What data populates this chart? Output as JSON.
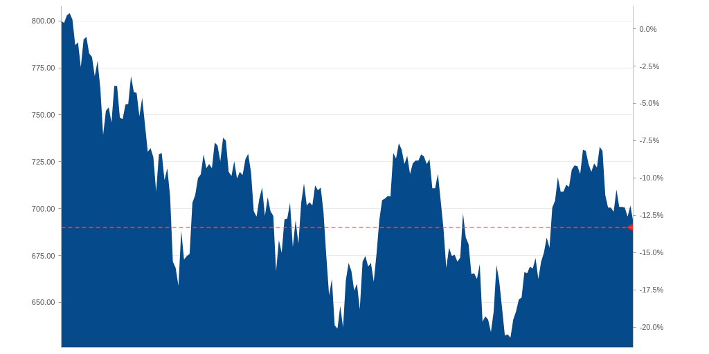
{
  "chart_data": {
    "type": "area",
    "categories": [
      null,
      null,
      null,
      null,
      null,
      null,
      null,
      null,
      null,
      null,
      null,
      null,
      null,
      null,
      null,
      null,
      null,
      null,
      null,
      null,
      null,
      null,
      null,
      null,
      null,
      null,
      null,
      null,
      null,
      null,
      null,
      null,
      null,
      null,
      null,
      null,
      null,
      null,
      null,
      null,
      null,
      null,
      null,
      null,
      null,
      null,
      null,
      null,
      null,
      null,
      null,
      null,
      null,
      null,
      null,
      null,
      null,
      null,
      null,
      null,
      null,
      null,
      null,
      null,
      null,
      null,
      null,
      null,
      null,
      null,
      null,
      null,
      null,
      null,
      null,
      null,
      null,
      null,
      null,
      null,
      null,
      null,
      null,
      null,
      null,
      null,
      null,
      null,
      null,
      null,
      null,
      null,
      null,
      null,
      null,
      null,
      null,
      null,
      null,
      null,
      null,
      null,
      null,
      null,
      null,
      null,
      null,
      null,
      null,
      null,
      null,
      null,
      null,
      null,
      null,
      null,
      null,
      null,
      null,
      null,
      null,
      null,
      null,
      null,
      null,
      null,
      null,
      null,
      null,
      null,
      null,
      null,
      null,
      null,
      null,
      null,
      null,
      null,
      null,
      null,
      null,
      null,
      null,
      null,
      null,
      null,
      null,
      null,
      null,
      null,
      null,
      null,
      null,
      null,
      null,
      null,
      null,
      null,
      null,
      null,
      null,
      null,
      null,
      null,
      null,
      null,
      null,
      null,
      null,
      null,
      null,
      null,
      null,
      null,
      null,
      null,
      null,
      null,
      null,
      null,
      null,
      null,
      null,
      null,
      null,
      null,
      null,
      null,
      null,
      null,
      null,
      null,
      null,
      null,
      null,
      null,
      null,
      null,
      null,
      null,
      null,
      null,
      null,
      null,
      null,
      null
    ],
    "series": [
      {
        "color": "#054a8a",
        "values": [
          800.0,
          798.9,
          802.9,
          804.1,
          800.7,
          787.1,
          788.6,
          775.3,
          790.0,
          791.5,
          782.7,
          780.8,
          770.5,
          778.6,
          764.2,
          739.2,
          752.1,
          753.9,
          745.8,
          765.4,
          765.4,
          748.4,
          747.7,
          755.4,
          755.8,
          770.5,
          762.1,
          761.7,
          749.1,
          759.1,
          744.7,
          730.3,
          732.2,
          727.4,
          709.0,
          728.9,
          729.6,
          715.2,
          721.5,
          706.7,
          671.7,
          668.4,
          658.8,
          688.3,
          672.8,
          674.7,
          675.8,
          703.1,
          707.1,
          716.3,
          718.2,
          728.9,
          721.5,
          723.7,
          721.5,
          735.1,
          733.7,
          725.2,
          737.7,
          736.2,
          719.6,
          717.4,
          725.2,
          716.0,
          719.6,
          717.8,
          726.3,
          729.2,
          719.6,
          698.6,
          695.7,
          705.3,
          711.2,
          696.1,
          706.0,
          698.6,
          696.1,
          666.6,
          683.2,
          676.5,
          694.2,
          694.6,
          703.1,
          679.5,
          693.8,
          681.3,
          703.1,
          713.4,
          701.6,
          703.4,
          701.6,
          712.3,
          709.7,
          711.2,
          697.9,
          674.7,
          653.7,
          662.5,
          637.8,
          636.0,
          648.1,
          636.7,
          661.8,
          671.0,
          666.6,
          656.3,
          659.9,
          646.3,
          671.7,
          674.7,
          669.1,
          671.0,
          661.0,
          675.8,
          693.8,
          704.5,
          705.3,
          706.7,
          706.4,
          729.6,
          726.7,
          734.8,
          731.5,
          723.7,
          728.1,
          718.5,
          724.1,
          725.6,
          725.6,
          728.9,
          727.8,
          723.7,
          726.3,
          710.8,
          710.8,
          718.5,
          704.2,
          689.4,
          668.4,
          679.1,
          674.7,
          675.4,
          671.7,
          673.9,
          697.5,
          684.6,
          681.0,
          665.1,
          665.5,
          662.5,
          670.3,
          639.7,
          642.6,
          640.8,
          634.2,
          645.2,
          669.9,
          661.1,
          647.0,
          632.3,
          633.0,
          631.2,
          640.8,
          645.2,
          651.5,
          652.6,
          666.2,
          665.5,
          669.1,
          668.0,
          673.6,
          662.5,
          671.7,
          676.5,
          684.6,
          679.1,
          700.5,
          704.2,
          716.7,
          709.0,
          709.0,
          712.7,
          711.6,
          720.8,
          723.0,
          722.6,
          718.5,
          731.4,
          730.7,
          723.7,
          719.6,
          724.1,
          721.9,
          732.9,
          730.7,
          707.1,
          700.5,
          700.5,
          698.3,
          710.1,
          700.9,
          700.9,
          700.5,
          695.7,
          701.6,
          693.1
        ]
      },
      {
        "type": "scatter",
        "color": "#ee1c25",
        "marker": "triangle",
        "values": [
          null,
          null,
          null,
          null,
          null,
          null,
          null,
          null,
          null,
          null,
          null,
          null,
          null,
          null,
          null,
          null,
          null,
          null,
          null,
          null,
          null,
          null,
          null,
          null,
          null,
          null,
          null,
          null,
          null,
          null,
          null,
          null,
          null,
          null,
          null,
          null,
          null,
          null,
          null,
          null,
          null,
          null,
          null,
          null,
          null,
          null,
          null,
          null,
          null,
          null,
          null,
          null,
          null,
          null,
          null,
          null,
          null,
          null,
          null,
          null,
          null,
          null,
          null,
          null,
          null,
          null,
          null,
          null,
          null,
          null,
          null,
          null,
          null,
          null,
          null,
          null,
          null,
          null,
          null,
          null,
          null,
          null,
          null,
          null,
          null,
          null,
          null,
          null,
          null,
          null,
          null,
          null,
          null,
          null,
          null,
          null,
          null,
          null,
          null,
          null,
          null,
          null,
          null,
          null,
          null,
          null,
          null,
          null,
          null,
          null,
          null,
          null,
          null,
          null,
          null,
          null,
          null,
          null,
          null,
          null,
          null,
          null,
          null,
          null,
          null,
          null,
          null,
          null,
          null,
          null,
          null,
          null,
          null,
          null,
          null,
          null,
          null,
          null,
          null,
          null,
          null,
          null,
          null,
          null,
          null,
          null,
          null,
          null,
          null,
          null,
          null,
          null,
          null,
          null,
          null,
          null,
          null,
          null,
          null,
          null,
          null,
          null,
          null,
          null,
          null,
          null,
          null,
          null,
          null,
          null,
          null,
          null,
          null,
          null,
          null,
          null,
          null,
          null,
          null,
          null,
          null,
          null,
          null,
          null,
          null,
          null,
          null,
          null,
          null,
          null,
          null,
          null,
          null,
          null,
          null,
          null,
          null,
          null,
          null,
          null,
          null,
          null,
          null,
          null,
          null,
          690
        ]
      }
    ],
    "ylim": [
      626,
      808
    ],
    "yticks": [
      {
        "value": 650,
        "label": "650.00"
      },
      {
        "value": 675,
        "label": "675.00"
      },
      {
        "value": 700,
        "label": "700.00"
      },
      {
        "value": 725,
        "label": "725.00"
      },
      {
        "value": 750,
        "label": "750.00"
      },
      {
        "value": 775,
        "label": "775.00"
      },
      {
        "value": 800,
        "label": "800.00"
      }
    ],
    "y2lim": [
      -21.35,
      1.53
    ],
    "y2ticks": [
      {
        "value": 0,
        "label": "0.0%"
      },
      {
        "value": -2.5,
        "label": "-2.5%"
      },
      {
        "value": -5,
        "label": "-5.0%"
      },
      {
        "value": -7.5,
        "label": "-7.5%"
      },
      {
        "value": -10,
        "label": "-10.0%"
      },
      {
        "value": -12.5,
        "label": "-12.5%"
      },
      {
        "value": -15,
        "label": "-15.0%"
      },
      {
        "value": -17.5,
        "label": "-17.5%"
      },
      {
        "value": -20,
        "label": "-20.0%"
      }
    ],
    "ref_lines": [
      {
        "axis": "y",
        "value": 690,
        "color": "#f05a5a",
        "line_style": "dashed"
      }
    ],
    "grid": "y",
    "tick_labels": "y"
  }
}
